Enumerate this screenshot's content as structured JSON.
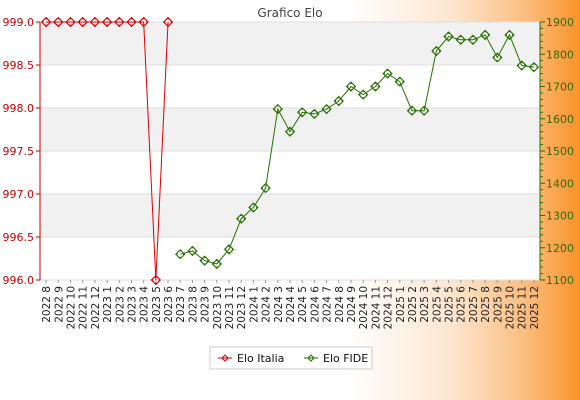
{
  "chart_data": {
    "type": "line",
    "title": "Grafico Elo",
    "categories": [
      "2022 8",
      "2022 9",
      "2022 10",
      "2022 11",
      "2022 12",
      "2023 1",
      "2023 2",
      "2023 3",
      "2023 4",
      "2023 5",
      "2023 6",
      "2023 7",
      "2023 8",
      "2023 9",
      "2023 10",
      "2023 11",
      "2023 12",
      "2024 1",
      "2024 2",
      "2024 3",
      "2024 4",
      "2024 5",
      "2024 6",
      "2024 7",
      "2024 8",
      "2024 9",
      "2024 10",
      "2024 11",
      "2024 12",
      "2025 1",
      "2025 2",
      "2025 3",
      "2025 4",
      "2025 5",
      "2025 6",
      "2025 7",
      "2025 8",
      "2025 9",
      "2025 10",
      "2025 11",
      "2025 12"
    ],
    "y_left": {
      "ylim": [
        996.0,
        999.0
      ],
      "ticks": [
        "996.0",
        "996.5",
        "997.0",
        "997.5",
        "998.0",
        "998.5",
        "999.0"
      ],
      "color": "#cc0000"
    },
    "y_right": {
      "ylim": [
        1100,
        1900
      ],
      "ticks": [
        "1100",
        "1200",
        "1300",
        "1400",
        "1500",
        "1600",
        "1700",
        "1800",
        "1900"
      ],
      "color": "#2e6b00"
    },
    "series": [
      {
        "name": "Elo Italia",
        "axis": "left",
        "color": "#dd0000",
        "values": [
          999,
          999,
          999,
          999,
          999,
          999,
          999,
          999,
          999,
          996,
          999,
          null,
          null,
          null,
          null,
          null,
          null,
          null,
          null,
          null,
          null,
          null,
          null,
          null,
          null,
          null,
          null,
          null,
          null,
          null,
          null,
          null,
          null,
          null,
          null,
          null,
          null,
          null,
          null,
          null,
          null
        ]
      },
      {
        "name": "Elo FIDE",
        "axis": "right",
        "color": "#267000",
        "values": [
          null,
          null,
          null,
          null,
          null,
          null,
          null,
          null,
          null,
          null,
          null,
          1180,
          1190,
          1160,
          1150,
          1195,
          1290,
          1325,
          1385,
          1630,
          1560,
          1620,
          1615,
          1630,
          1655,
          1700,
          1675,
          1700,
          1740,
          1715,
          1625,
          1625,
          1810,
          1855,
          1845,
          1845,
          1860,
          1790,
          1860,
          1765,
          1760
        ]
      }
    ],
    "legend": "bottom-center",
    "grid": "horizontal bands"
  }
}
